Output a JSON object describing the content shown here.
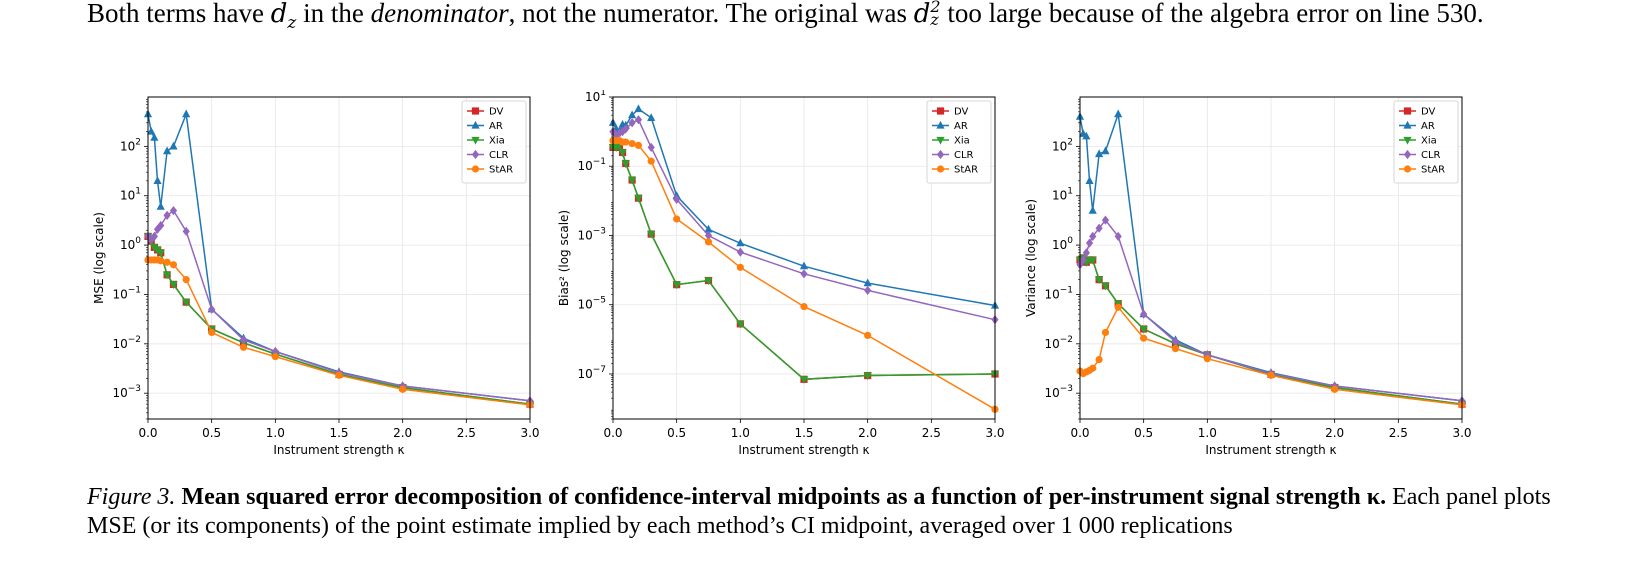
{
  "paragraph": {
    "part1": "Both terms have ",
    "dz1": "d",
    "dz1_sub": "z",
    "part2": " in the ",
    "denominator": "denominator",
    "part3": ", not the numerator. The original was ",
    "dz2": "d",
    "dz2_sup": "2",
    "dz2_sub": "z",
    "part4": " too large because of the algebra error on line 530."
  },
  "caption": {
    "label": "Figure 3.",
    "title": "Mean squared error decomposition of confidence-interval midpoints as a function of per-instrument signal strength κ.",
    "body": "Each panel plots MSE (or its components) of the point estimate implied by each method’s CI midpoint, averaged over 1 000 replications"
  },
  "colors": {
    "DV": "#d62728",
    "AR": "#1f77b4",
    "Xia": "#2ca02c",
    "CLR": "#9467bd",
    "StAR": "#ff7f0e"
  },
  "chart_data": [
    {
      "type": "line",
      "ylabel": "MSE (log scale)",
      "xlabel": "Instrument strength κ",
      "xlim": [
        0,
        3
      ],
      "ylim": [
        0.0003,
        1000
      ],
      "yscale": "log",
      "xticks": [
        0.0,
        0.5,
        1.0,
        1.5,
        2.0,
        2.5,
        3.0
      ],
      "xtick_labels": [
        "0.0",
        "0.5",
        "1.0",
        "1.5",
        "2.0",
        "2.5",
        "3.0"
      ],
      "yticks": [
        0.001,
        0.01,
        0.1,
        1,
        10,
        100
      ],
      "ytick_labels": [
        [
          "10",
          "−3"
        ],
        [
          "10",
          "−2"
        ],
        [
          "10",
          "−1"
        ],
        [
          "10",
          "0"
        ],
        [
          "10",
          "1"
        ],
        [
          "10",
          "2"
        ]
      ],
      "grid": true,
      "legend": "top-right",
      "series": [
        {
          "name": "DV",
          "marker": "square",
          "points": [
            [
              0,
              1.5
            ],
            [
              0.025,
              1.2
            ],
            [
              0.05,
              0.9
            ],
            [
              0.075,
              0.8
            ],
            [
              0.1,
              0.7
            ],
            [
              0.15,
              0.25
            ],
            [
              0.2,
              0.16
            ],
            [
              0.3,
              0.07
            ],
            [
              0.5,
              0.02
            ],
            [
              0.75,
              0.0105
            ],
            [
              1.0,
              0.0062
            ],
            [
              1.5,
              0.0024
            ],
            [
              2.0,
              0.0013
            ],
            [
              3.0,
              0.0006
            ]
          ]
        },
        {
          "name": "AR",
          "marker": "triangle",
          "points": [
            [
              0,
              450
            ],
            [
              0.025,
              200
            ],
            [
              0.05,
              150
            ],
            [
              0.075,
              20
            ],
            [
              0.1,
              6
            ],
            [
              0.15,
              80
            ],
            [
              0.2,
              100
            ],
            [
              0.3,
              450
            ],
            [
              0.5,
              0.05
            ],
            [
              0.75,
              0.013
            ],
            [
              1.0,
              0.007
            ],
            [
              1.5,
              0.0027
            ],
            [
              2.0,
              0.0014
            ],
            [
              3.0,
              0.0007
            ]
          ]
        },
        {
          "name": "Xia",
          "marker": "triangle-down",
          "points": [
            [
              0,
              1.5
            ],
            [
              0.025,
              1.2
            ],
            [
              0.05,
              0.9
            ],
            [
              0.075,
              0.8
            ],
            [
              0.1,
              0.7
            ],
            [
              0.15,
              0.25
            ],
            [
              0.2,
              0.16
            ],
            [
              0.3,
              0.07
            ],
            [
              0.5,
              0.02
            ],
            [
              0.75,
              0.0105
            ],
            [
              1.0,
              0.0062
            ],
            [
              1.5,
              0.0024
            ],
            [
              2.0,
              0.0013
            ],
            [
              3.0,
              0.0006
            ]
          ]
        },
        {
          "name": "CLR",
          "marker": "diamond",
          "points": [
            [
              0,
              1.5
            ],
            [
              0.025,
              1.3
            ],
            [
              0.05,
              1.5
            ],
            [
              0.075,
              2.1
            ],
            [
              0.1,
              2.5
            ],
            [
              0.15,
              4
            ],
            [
              0.2,
              5
            ],
            [
              0.3,
              1.9
            ],
            [
              0.5,
              0.05
            ],
            [
              0.75,
              0.012
            ],
            [
              1.0,
              0.007
            ],
            [
              1.5,
              0.0026
            ],
            [
              2.0,
              0.0014
            ],
            [
              3.0,
              0.0007
            ]
          ]
        },
        {
          "name": "StAR",
          "marker": "circle",
          "points": [
            [
              0,
              0.5
            ],
            [
              0.025,
              0.5
            ],
            [
              0.05,
              0.5
            ],
            [
              0.075,
              0.5
            ],
            [
              0.1,
              0.48
            ],
            [
              0.15,
              0.45
            ],
            [
              0.2,
              0.4
            ],
            [
              0.3,
              0.2
            ],
            [
              0.5,
              0.017
            ],
            [
              0.75,
              0.0085
            ],
            [
              1.0,
              0.0055
            ],
            [
              1.5,
              0.0023
            ],
            [
              2.0,
              0.0012
            ],
            [
              3.0,
              0.00058
            ]
          ]
        }
      ]
    },
    {
      "type": "line",
      "ylabel": "Bias² (log scale)",
      "xlabel": "Instrument strength κ",
      "xlim": [
        0,
        3
      ],
      "ylim": [
        5e-09,
        10
      ],
      "yscale": "log",
      "xticks": [
        0.0,
        0.5,
        1.0,
        1.5,
        2.0,
        2.5,
        3.0
      ],
      "xtick_labels": [
        "0.0",
        "0.5",
        "1.0",
        "1.5",
        "2.0",
        "2.5",
        "3.0"
      ],
      "yticks": [
        1e-07,
        1e-05,
        0.001,
        0.1,
        10
      ],
      "ytick_labels": [
        [
          "10",
          "−7"
        ],
        [
          "10",
          "−5"
        ],
        [
          "10",
          "−3"
        ],
        [
          "10",
          "−1"
        ],
        [
          "10",
          "1"
        ]
      ],
      "grid": true,
      "legend": "top-right",
      "series": [
        {
          "name": "DV",
          "marker": "square",
          "points": [
            [
              0,
              0.35
            ],
            [
              0.025,
              0.35
            ],
            [
              0.05,
              0.4
            ],
            [
              0.075,
              0.25
            ],
            [
              0.1,
              0.12
            ],
            [
              0.15,
              0.04
            ],
            [
              0.2,
              0.012
            ],
            [
              0.3,
              0.0011
            ],
            [
              0.5,
              3.8e-05
            ],
            [
              0.75,
              5e-05
            ],
            [
              1.0,
              2.8e-06
            ],
            [
              1.5,
              7e-08
            ],
            [
              2.0,
              9e-08
            ],
            [
              3.0,
              1e-07
            ]
          ]
        },
        {
          "name": "AR",
          "marker": "triangle",
          "points": [
            [
              0,
              1.8
            ],
            [
              0.025,
              1.2
            ],
            [
              0.05,
              1.0
            ],
            [
              0.075,
              1.6
            ],
            [
              0.1,
              1.5
            ],
            [
              0.15,
              3
            ],
            [
              0.2,
              4.5
            ],
            [
              0.3,
              2.5
            ],
            [
              0.5,
              0.014
            ],
            [
              0.75,
              0.0015
            ],
            [
              1.0,
              0.0006
            ],
            [
              1.5,
              0.00013
            ],
            [
              2.0,
              4.2e-05
            ],
            [
              3.0,
              9.5e-06
            ]
          ]
        },
        {
          "name": "Xia",
          "marker": "triangle-down",
          "points": [
            [
              0,
              0.35
            ],
            [
              0.025,
              0.35
            ],
            [
              0.05,
              0.4
            ],
            [
              0.075,
              0.25
            ],
            [
              0.1,
              0.12
            ],
            [
              0.15,
              0.04
            ],
            [
              0.2,
              0.012
            ],
            [
              0.3,
              0.0011
            ],
            [
              0.5,
              3.8e-05
            ],
            [
              0.75,
              5e-05
            ],
            [
              1.0,
              2.8e-06
            ],
            [
              1.5,
              7e-08
            ],
            [
              2.0,
              9e-08
            ],
            [
              3.0,
              1e-07
            ]
          ]
        },
        {
          "name": "CLR",
          "marker": "diamond",
          "points": [
            [
              0,
              1.0
            ],
            [
              0.025,
              0.8
            ],
            [
              0.05,
              0.9
            ],
            [
              0.075,
              1.0
            ],
            [
              0.1,
              1.2
            ],
            [
              0.15,
              1.8
            ],
            [
              0.2,
              2.2
            ],
            [
              0.3,
              0.35
            ],
            [
              0.5,
              0.011
            ],
            [
              0.75,
              0.001
            ],
            [
              1.0,
              0.00033
            ],
            [
              1.5,
              7.8e-05
            ],
            [
              2.0,
              2.6e-05
            ],
            [
              3.0,
              3.7e-06
            ]
          ]
        },
        {
          "name": "StAR",
          "marker": "circle",
          "points": [
            [
              0,
              0.55
            ],
            [
              0.025,
              0.55
            ],
            [
              0.05,
              0.55
            ],
            [
              0.075,
              0.5
            ],
            [
              0.1,
              0.5
            ],
            [
              0.15,
              0.45
            ],
            [
              0.2,
              0.4
            ],
            [
              0.3,
              0.14
            ],
            [
              0.5,
              0.003
            ],
            [
              0.75,
              0.00065
            ],
            [
              1.0,
              0.00012
            ],
            [
              1.5,
              8.8e-06
            ],
            [
              2.0,
              1.3e-06
            ],
            [
              3.0,
              9.5e-09
            ]
          ]
        }
      ]
    },
    {
      "type": "line",
      "ylabel": "Variance (log scale)",
      "xlabel": "Instrument strength κ",
      "xlim": [
        0,
        3
      ],
      "ylim": [
        0.0003,
        1000
      ],
      "yscale": "log",
      "xticks": [
        0.0,
        0.5,
        1.0,
        1.5,
        2.0,
        2.5,
        3.0
      ],
      "xtick_labels": [
        "0.0",
        "0.5",
        "1.0",
        "1.5",
        "2.0",
        "2.5",
        "3.0"
      ],
      "yticks": [
        0.001,
        0.01,
        0.1,
        1,
        10,
        100
      ],
      "ytick_labels": [
        [
          "10",
          "−3"
        ],
        [
          "10",
          "−2"
        ],
        [
          "10",
          "−1"
        ],
        [
          "10",
          "0"
        ],
        [
          "10",
          "1"
        ],
        [
          "10",
          "2"
        ]
      ],
      "grid": true,
      "legend": "top-right",
      "series": [
        {
          "name": "DV",
          "marker": "square",
          "points": [
            [
              0,
              0.5
            ],
            [
              0.025,
              0.55
            ],
            [
              0.05,
              0.45
            ],
            [
              0.075,
              0.5
            ],
            [
              0.1,
              0.5
            ],
            [
              0.15,
              0.2
            ],
            [
              0.2,
              0.15
            ],
            [
              0.3,
              0.065
            ],
            [
              0.5,
              0.02
            ],
            [
              0.75,
              0.01
            ],
            [
              1.0,
              0.006
            ],
            [
              1.5,
              0.0024
            ],
            [
              2.0,
              0.0013
            ],
            [
              3.0,
              0.0006
            ]
          ]
        },
        {
          "name": "AR",
          "marker": "triangle",
          "points": [
            [
              0,
              400
            ],
            [
              0.025,
              180
            ],
            [
              0.05,
              160
            ],
            [
              0.075,
              20
            ],
            [
              0.1,
              5
            ],
            [
              0.15,
              70
            ],
            [
              0.2,
              80
            ],
            [
              0.3,
              450
            ],
            [
              0.5,
              0.04
            ],
            [
              0.75,
              0.012
            ],
            [
              1.0,
              0.006
            ],
            [
              1.5,
              0.0026
            ],
            [
              2.0,
              0.0014
            ],
            [
              3.0,
              0.0007
            ]
          ]
        },
        {
          "name": "Xia",
          "marker": "triangle-down",
          "points": [
            [
              0,
              0.5
            ],
            [
              0.025,
              0.55
            ],
            [
              0.05,
              0.45
            ],
            [
              0.075,
              0.5
            ],
            [
              0.1,
              0.5
            ],
            [
              0.15,
              0.2
            ],
            [
              0.2,
              0.15
            ],
            [
              0.3,
              0.065
            ],
            [
              0.5,
              0.02
            ],
            [
              0.75,
              0.01
            ],
            [
              1.0,
              0.006
            ],
            [
              1.5,
              0.0024
            ],
            [
              2.0,
              0.0013
            ],
            [
              3.0,
              0.0006
            ]
          ]
        },
        {
          "name": "CLR",
          "marker": "diamond",
          "points": [
            [
              0,
              0.4
            ],
            [
              0.025,
              0.5
            ],
            [
              0.05,
              0.7
            ],
            [
              0.075,
              1.1
            ],
            [
              0.1,
              1.5
            ],
            [
              0.15,
              2.2
            ],
            [
              0.2,
              3.2
            ],
            [
              0.3,
              1.5
            ],
            [
              0.5,
              0.04
            ],
            [
              0.75,
              0.011
            ],
            [
              1.0,
              0.006
            ],
            [
              1.5,
              0.0025
            ],
            [
              2.0,
              0.0014
            ],
            [
              3.0,
              0.0007
            ]
          ]
        },
        {
          "name": "StAR",
          "marker": "circle",
          "points": [
            [
              0,
              0.0028
            ],
            [
              0.025,
              0.0025
            ],
            [
              0.05,
              0.0027
            ],
            [
              0.075,
              0.0029
            ],
            [
              0.1,
              0.0032
            ],
            [
              0.15,
              0.0048
            ],
            [
              0.2,
              0.017
            ],
            [
              0.3,
              0.055
            ],
            [
              0.5,
              0.013
            ],
            [
              0.75,
              0.008
            ],
            [
              1.0,
              0.005
            ],
            [
              1.5,
              0.0023
            ],
            [
              2.0,
              0.0012
            ],
            [
              3.0,
              0.00058
            ]
          ]
        }
      ]
    }
  ]
}
